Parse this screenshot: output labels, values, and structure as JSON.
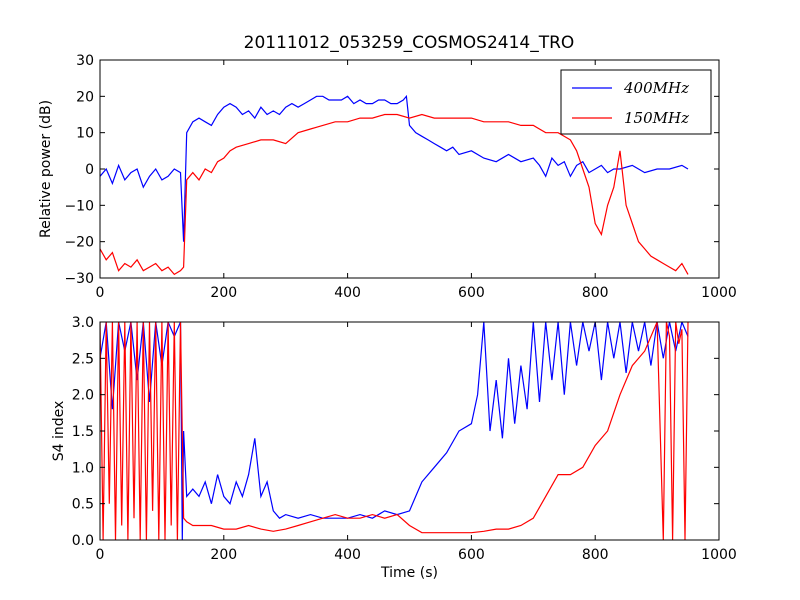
{
  "title": "20111012_053259_COSMOS2414_TRO",
  "colors": {
    "s400": "#0000ff",
    "s150": "#ff0000"
  },
  "chart_data": [
    {
      "type": "line",
      "title": "20111012_053259_COSMOS2414_TRO",
      "xlabel": "",
      "ylabel": "Relative power (dB)",
      "xlim": [
        0,
        1000
      ],
      "ylim": [
        -30,
        30
      ],
      "xticks": [
        "0",
        "200",
        "400",
        "600",
        "800",
        "1000"
      ],
      "yticks": [
        "−30",
        "−20",
        "−10",
        "0",
        "10",
        "20",
        "30"
      ],
      "grid": false,
      "legend": "top-right",
      "series": [
        {
          "name": "400MHz",
          "color": "#0000ff",
          "x": [
            0,
            10,
            20,
            30,
            40,
            50,
            60,
            70,
            80,
            90,
            100,
            110,
            120,
            130,
            135,
            140,
            150,
            160,
            170,
            180,
            190,
            200,
            210,
            220,
            230,
            240,
            250,
            260,
            270,
            280,
            290,
            300,
            310,
            320,
            330,
            340,
            350,
            360,
            370,
            380,
            390,
            400,
            410,
            420,
            430,
            440,
            450,
            460,
            470,
            480,
            490,
            495,
            500,
            510,
            520,
            530,
            540,
            550,
            560,
            570,
            580,
            600,
            620,
            640,
            660,
            680,
            700,
            710,
            720,
            730,
            740,
            750,
            760,
            770,
            780,
            790,
            800,
            810,
            820,
            830,
            840,
            860,
            880,
            900,
            920,
            940,
            950
          ],
          "y": [
            -2,
            0,
            -4,
            1,
            -3,
            -1,
            0,
            -5,
            -2,
            0,
            -3,
            -2,
            0,
            -1,
            -20,
            10,
            13,
            14,
            13,
            12,
            15,
            17,
            18,
            17,
            15,
            16,
            14,
            17,
            15,
            16,
            15,
            17,
            18,
            17,
            18,
            19,
            20,
            20,
            19,
            19,
            19,
            20,
            18,
            19,
            18,
            18,
            19,
            19,
            18,
            18,
            19,
            20,
            12,
            10,
            9,
            8,
            7,
            6,
            5,
            6,
            4,
            5,
            3,
            2,
            4,
            2,
            3,
            1,
            -2,
            3,
            1,
            2,
            -2,
            1,
            2,
            -1,
            0,
            1,
            -1,
            0,
            0,
            1,
            -1,
            0,
            0,
            1,
            0
          ]
        },
        {
          "name": "150MHz",
          "color": "#ff0000",
          "x": [
            0,
            10,
            20,
            30,
            40,
            50,
            60,
            70,
            80,
            90,
            100,
            110,
            120,
            130,
            135,
            140,
            150,
            160,
            170,
            180,
            190,
            200,
            210,
            220,
            240,
            260,
            280,
            300,
            320,
            340,
            360,
            380,
            400,
            420,
            440,
            460,
            480,
            500,
            520,
            540,
            560,
            580,
            600,
            620,
            640,
            660,
            680,
            700,
            720,
            740,
            760,
            770,
            780,
            790,
            800,
            810,
            820,
            830,
            840,
            850,
            860,
            870,
            880,
            890,
            900,
            910,
            920,
            930,
            940,
            950
          ],
          "y": [
            -22,
            -25,
            -23,
            -28,
            -26,
            -27,
            -25,
            -28,
            -27,
            -26,
            -28,
            -27,
            -29,
            -28,
            -27,
            -3,
            -1,
            -3,
            0,
            -1,
            2,
            3,
            5,
            6,
            7,
            8,
            8,
            7,
            10,
            11,
            12,
            13,
            13,
            14,
            14,
            15,
            15,
            14,
            15,
            14,
            14,
            14,
            14,
            13,
            13,
            13,
            12,
            12,
            10,
            10,
            8,
            5,
            0,
            -5,
            -15,
            -18,
            -10,
            -5,
            5,
            -10,
            -15,
            -20,
            -22,
            -24,
            -25,
            -26,
            -27,
            -28,
            -26,
            -29
          ]
        }
      ]
    },
    {
      "type": "line",
      "title": "",
      "xlabel": "Time (s)",
      "ylabel": "S4 index",
      "xlim": [
        0,
        1000
      ],
      "ylim": [
        0,
        3
      ],
      "xticks": [
        "0",
        "200",
        "400",
        "600",
        "800",
        "1000"
      ],
      "yticks": [
        "0.0",
        "0.5",
        "1.0",
        "1.5",
        "2.0",
        "2.5",
        "3.0"
      ],
      "grid": false,
      "series": [
        {
          "name": "400MHz",
          "color": "#0000ff",
          "x": [
            0,
            10,
            20,
            30,
            40,
            50,
            60,
            70,
            80,
            90,
            100,
            110,
            120,
            130,
            133,
            135,
            140,
            150,
            160,
            170,
            180,
            190,
            200,
            210,
            220,
            230,
            240,
            250,
            260,
            270,
            280,
            290,
            300,
            320,
            340,
            360,
            380,
            400,
            420,
            440,
            460,
            480,
            500,
            510,
            520,
            540,
            560,
            580,
            600,
            610,
            620,
            630,
            640,
            650,
            660,
            670,
            680,
            690,
            700,
            710,
            720,
            730,
            740,
            750,
            760,
            770,
            780,
            790,
            800,
            810,
            820,
            830,
            840,
            850,
            860,
            870,
            880,
            890,
            900,
            910,
            920,
            930,
            940,
            950
          ],
          "y": [
            2.5,
            3,
            1.8,
            3,
            2.6,
            3,
            2.2,
            3,
            1.9,
            3,
            2.4,
            3,
            2.8,
            3,
            0,
            1.5,
            0.6,
            0.7,
            0.6,
            0.8,
            0.5,
            0.9,
            0.6,
            0.5,
            0.8,
            0.6,
            0.9,
            1.4,
            0.6,
            0.8,
            0.4,
            0.3,
            0.35,
            0.3,
            0.35,
            0.3,
            0.3,
            0.3,
            0.35,
            0.3,
            0.4,
            0.35,
            0.4,
            0.6,
            0.8,
            1.0,
            1.2,
            1.5,
            1.6,
            2.0,
            3,
            1.5,
            2.2,
            1.4,
            2.5,
            1.6,
            2.4,
            1.8,
            3,
            1.9,
            3,
            2.2,
            3,
            2.0,
            3,
            2.4,
            3,
            2.6,
            3,
            2.2,
            3,
            2.5,
            3,
            2.3,
            3,
            2.6,
            3,
            2.4,
            3,
            2.5,
            3,
            2.6,
            3,
            2.8
          ]
        },
        {
          "name": "150MHz",
          "color": "#ff0000",
          "x": [
            0,
            5,
            10,
            15,
            20,
            25,
            30,
            35,
            40,
            45,
            50,
            55,
            60,
            65,
            70,
            75,
            80,
            85,
            90,
            95,
            100,
            105,
            110,
            115,
            120,
            125,
            130,
            135,
            140,
            150,
            160,
            180,
            200,
            220,
            240,
            260,
            280,
            300,
            320,
            340,
            360,
            380,
            400,
            420,
            440,
            460,
            480,
            500,
            520,
            540,
            560,
            580,
            600,
            620,
            640,
            660,
            680,
            700,
            720,
            740,
            760,
            780,
            800,
            820,
            840,
            860,
            880,
            900,
            910,
            915,
            920,
            925,
            930,
            935,
            940,
            945,
            950
          ],
          "y": [
            3,
            0,
            3,
            0.5,
            3,
            0,
            3,
            0.2,
            3,
            0,
            3,
            0.3,
            3,
            0,
            3,
            0,
            3,
            0.4,
            3,
            0,
            3,
            0,
            3,
            0.2,
            3,
            0,
            3,
            0.3,
            0.25,
            0.2,
            0.2,
            0.2,
            0.15,
            0.15,
            0.2,
            0.15,
            0.12,
            0.15,
            0.2,
            0.25,
            0.3,
            0.35,
            0.3,
            0.3,
            0.35,
            0.3,
            0.35,
            0.2,
            0.1,
            0.1,
            0.1,
            0.1,
            0.1,
            0.12,
            0.15,
            0.15,
            0.2,
            0.3,
            0.6,
            0.9,
            0.9,
            1.0,
            1.3,
            1.5,
            2.0,
            2.4,
            2.6,
            3,
            0,
            3,
            2.8,
            0,
            3,
            2.7,
            2.9,
            0,
            3
          ]
        }
      ]
    }
  ]
}
